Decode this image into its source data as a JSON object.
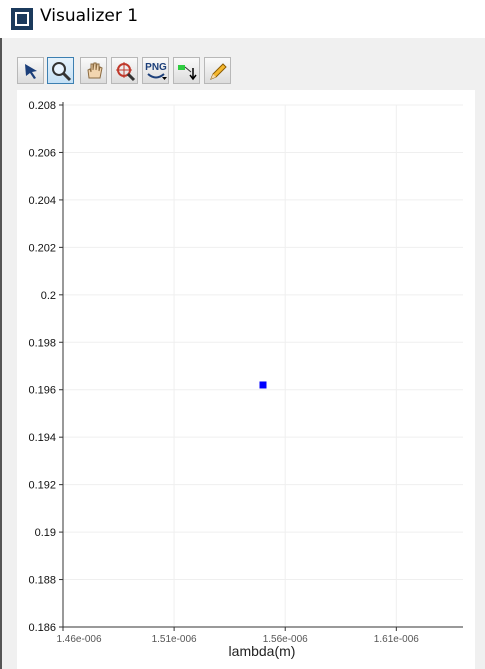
{
  "window": {
    "title": "Visualizer 1"
  },
  "toolbar": {
    "png_label": "PNG"
  },
  "chart_data": {
    "type": "scatter",
    "x_label": "lambda(m)",
    "x": [
      1.55e-06
    ],
    "values": [
      0.1962
    ],
    "color": "#0000ff",
    "xlim": [
      1.46e-06,
      1.64e-06
    ],
    "xticks": [
      {
        "value": 1.46e-06,
        "label": "1.46e-006"
      },
      {
        "value": 1.51e-06,
        "label": "1.51e-006"
      },
      {
        "value": 1.56e-06,
        "label": "1.56e-006"
      },
      {
        "value": 1.61e-06,
        "label": "1.61e-006"
      }
    ],
    "ylim": [
      0.186,
      0.208
    ],
    "yticks": [
      0.186,
      0.188,
      0.19,
      0.192,
      0.194,
      0.196,
      0.198,
      0.2,
      0.202,
      0.204,
      0.206,
      0.208
    ],
    "grid": true
  }
}
